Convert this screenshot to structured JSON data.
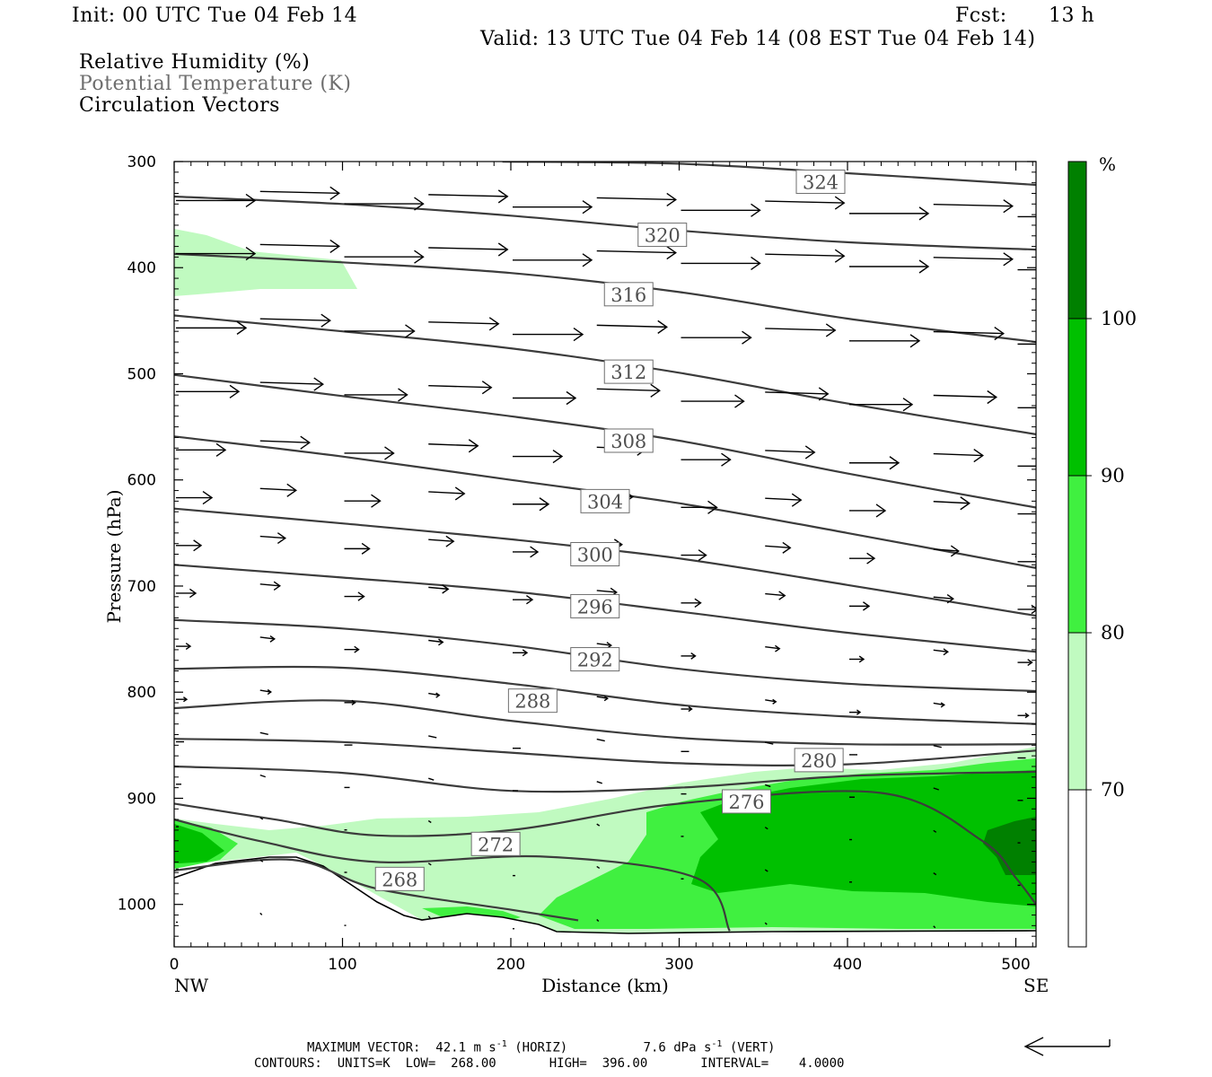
{
  "header": {
    "init": "Init: 00 UTC Tue 04 Feb 14",
    "fcst_label": "Fcst:",
    "fcst_value": "13 h",
    "valid": "Valid: 13 UTC Tue 04 Feb 14 (08 EST Tue 04 Feb 14)"
  },
  "legend": {
    "rh": "Relative Humidity (%)",
    "theta": "Potential Temperature (K)",
    "vectors": "Circulation Vectors"
  },
  "footer": {
    "max_vector_label": "MAXIMUM VECTOR:",
    "max_horiz": "42.1 m s",
    "max_horiz_tail": " (HORIZ)",
    "max_vert": "7.6 dPa s",
    "max_vert_tail": " (VERT)",
    "exponent": "-1",
    "contours": "CONTOURS:  UNITS=K  LOW=  268.00       HIGH=  396.00       INTERVAL=    4.0000"
  },
  "colors": {
    "rh_70_80": "#c0fac0",
    "rh_80_90": "#40f040",
    "rh_90_100": "#00c000",
    "rh_100": "#008000",
    "contour": "#3c3c3c"
  },
  "chart_data": {
    "type": "cross-section",
    "xlabel": "Distance (km)",
    "ylabel": "Pressure (hPa)",
    "xlim": [
      0,
      512
    ],
    "ylim": [
      1040,
      300
    ],
    "y_scale": "linear (pressure decreasing upward)",
    "x_ticks": [
      0,
      100,
      200,
      300,
      400,
      500
    ],
    "y_ticks": [
      300,
      400,
      500,
      600,
      700,
      800,
      900,
      1000
    ],
    "endpoint_left": "NW",
    "endpoint_right": "SE",
    "colorbar": {
      "unit": "%",
      "levels": [
        70,
        80,
        90,
        100
      ],
      "colors": [
        "#ffffff",
        "#c0fac0",
        "#40f040",
        "#00c000",
        "#008000"
      ]
    },
    "theta_contours": [
      {
        "label": "324",
        "label_at": [
          384,
          319
        ],
        "points": [
          [
            195,
            300
          ],
          [
            300,
            302
          ],
          [
            400,
            311
          ],
          [
            512,
            322
          ]
        ]
      },
      {
        "label": "320",
        "label_at": [
          290,
          369
        ],
        "points": [
          [
            0,
            333
          ],
          [
            100,
            340
          ],
          [
            200,
            351
          ],
          [
            300,
            365
          ],
          [
            400,
            376
          ],
          [
            512,
            383
          ]
        ]
      },
      {
        "label": "316",
        "label_at": [
          270,
          425
        ],
        "points": [
          [
            0,
            387
          ],
          [
            100,
            395
          ],
          [
            200,
            405
          ],
          [
            300,
            423
          ],
          [
            400,
            448
          ],
          [
            512,
            470
          ]
        ]
      },
      {
        "label": "312",
        "label_at": [
          270,
          498
        ],
        "points": [
          [
            0,
            445
          ],
          [
            100,
            460
          ],
          [
            200,
            476
          ],
          [
            300,
            499
          ],
          [
            400,
            528
          ],
          [
            512,
            557
          ]
        ]
      },
      {
        "label": "308",
        "label_at": [
          270,
          563
        ],
        "points": [
          [
            0,
            501
          ],
          [
            100,
            521
          ],
          [
            200,
            540
          ],
          [
            300,
            563
          ],
          [
            400,
            594
          ],
          [
            512,
            626
          ]
        ]
      },
      {
        "label": "304",
        "label_at": [
          256,
          620
        ],
        "points": [
          [
            0,
            559
          ],
          [
            100,
            578
          ],
          [
            200,
            600
          ],
          [
            300,
            622
          ],
          [
            400,
            650
          ],
          [
            512,
            683
          ]
        ]
      },
      {
        "label": "300",
        "label_at": [
          250,
          670
        ],
        "points": [
          [
            0,
            627
          ],
          [
            100,
            641
          ],
          [
            200,
            656
          ],
          [
            300,
            674
          ],
          [
            400,
            699
          ],
          [
            512,
            728
          ]
        ]
      },
      {
        "label": "296",
        "label_at": [
          250,
          719
        ],
        "points": [
          [
            0,
            680
          ],
          [
            100,
            692
          ],
          [
            200,
            705
          ],
          [
            300,
            724
          ],
          [
            400,
            744
          ],
          [
            512,
            762
          ]
        ]
      },
      {
        "label": "292",
        "label_at": [
          250,
          769
        ],
        "points": [
          [
            0,
            732
          ],
          [
            100,
            740
          ],
          [
            200,
            756
          ],
          [
            300,
            778
          ],
          [
            400,
            792
          ],
          [
            512,
            799
          ]
        ]
      },
      {
        "label": "288",
        "label_at": [
          213,
          808
        ],
        "points": [
          [
            0,
            778
          ],
          [
            100,
            777
          ],
          [
            200,
            792
          ],
          [
            300,
            812
          ],
          [
            400,
            823
          ],
          [
            512,
            830
          ]
        ]
      },
      {
        "label": "",
        "label_at": null,
        "points": [
          [
            0,
            815
          ],
          [
            100,
            808
          ],
          [
            200,
            827
          ],
          [
            300,
            843
          ],
          [
            400,
            849
          ],
          [
            512,
            849
          ]
        ]
      },
      {
        "label": "",
        "label_at": null,
        "points": [
          [
            0,
            844
          ],
          [
            100,
            847
          ],
          [
            200,
            857
          ],
          [
            300,
            867
          ],
          [
            400,
            868
          ],
          [
            512,
            855
          ]
        ]
      },
      {
        "label": "280",
        "label_at": [
          383,
          864
        ],
        "points": [
          [
            0,
            870
          ],
          [
            100,
            876
          ],
          [
            200,
            893
          ],
          [
            300,
            890
          ],
          [
            400,
            879
          ],
          [
            512,
            875
          ]
        ]
      },
      {
        "label": "276",
        "label_at": [
          340,
          903
        ],
        "points": [
          [
            0,
            905
          ],
          [
            60,
            920
          ],
          [
            120,
            935
          ],
          [
            200,
            930
          ],
          [
            300,
            905
          ],
          [
            420,
            895
          ],
          [
            480,
            940
          ],
          [
            500,
            975
          ],
          [
            512,
            1000
          ]
        ]
      },
      {
        "label": "272",
        "label_at": [
          191,
          943
        ],
        "points": [
          [
            0,
            920
          ],
          [
            50,
            940
          ],
          [
            120,
            960
          ],
          [
            220,
            955
          ],
          [
            310,
            975
          ],
          [
            330,
            1025
          ]
        ]
      },
      {
        "label": "268",
        "label_at": [
          134,
          976
        ],
        "points": [
          [
            0,
            968
          ],
          [
            70,
            958
          ],
          [
            120,
            985
          ],
          [
            200,
            1005
          ],
          [
            240,
            1015
          ]
        ]
      }
    ],
    "vector_columns_km": [
      0,
      50,
      100,
      150,
      200,
      250,
      300,
      350,
      400,
      450,
      500
    ],
    "max_vector_horiz_ms": 42.1,
    "max_vector_vert_dpas": 7.6,
    "contour_low": 268.0,
    "contour_high": 396.0,
    "contour_interval": 4.0
  }
}
